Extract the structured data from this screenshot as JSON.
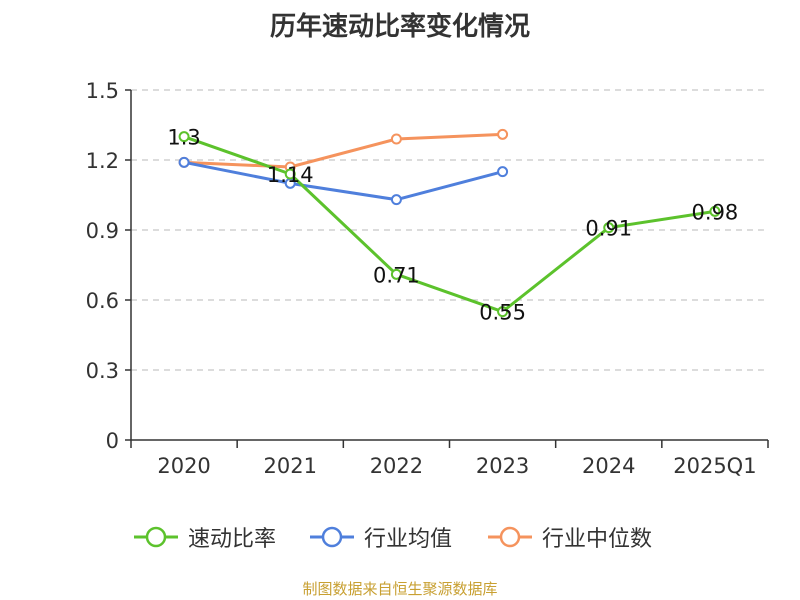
{
  "chart_data": {
    "type": "line",
    "title": "历年速动比率变化情况",
    "categories": [
      "2020",
      "2021",
      "2022",
      "2023",
      "2024",
      "2025Q1"
    ],
    "ylim": [
      0,
      1.5
    ],
    "yticks": [
      "0",
      "0.3",
      "0.6",
      "0.9",
      "1.2",
      "1.5"
    ],
    "grid": "horizontal-dashed",
    "legend_position": "bottom",
    "series": [
      {
        "name": "速动比率",
        "color": "#5cc22c",
        "values": [
          1.3,
          1.14,
          0.71,
          0.55,
          0.91,
          0.98
        ],
        "data_labels": [
          "1.3",
          "1.14",
          "0.71",
          "0.55",
          "0.91",
          "0.98"
        ]
      },
      {
        "name": "行业均值",
        "color": "#4f7fdc",
        "values": [
          1.19,
          1.1,
          1.03,
          1.15,
          null,
          null
        ]
      },
      {
        "name": "行业中位数",
        "color": "#f5935d",
        "values": [
          1.19,
          1.17,
          1.29,
          1.31,
          null,
          null
        ]
      }
    ]
  },
  "source_text": "制图数据来自恒生聚源数据库"
}
